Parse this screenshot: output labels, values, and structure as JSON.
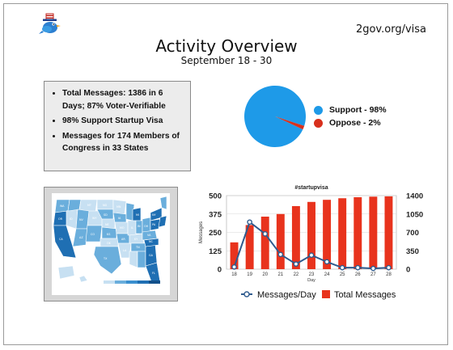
{
  "header": {
    "site_url": "2gov.org/visa",
    "title": "Activity Overview",
    "subtitle": "September 18 - 30"
  },
  "summary": {
    "bullets": [
      "Total Messages: 1386 in 6 Days; 87% Voter-Verifiable",
      "98% Support Startup Visa",
      "Messages for 174 Members of Congress in 33 States"
    ]
  },
  "colors": {
    "support": "#1e9ae8",
    "oppose": "#d8301c",
    "bars": "#e8331d",
    "line": "#2f5b8e",
    "map_dark": "#1f6fb3",
    "map_mid": "#6aaedc",
    "map_light": "#c7e0f2"
  },
  "chart_data": [
    {
      "type": "pie",
      "categories": [
        "Support - 98%",
        "Oppose -  2%"
      ],
      "values": [
        98,
        2
      ]
    },
    {
      "type": "bar",
      "title": "#startupvisa",
      "xlabel": "Day",
      "ylabel": "Messages",
      "categories": [
        "18",
        "19",
        "20",
        "21",
        "22",
        "23",
        "24",
        "25",
        "26",
        "27",
        "28"
      ],
      "series": [
        {
          "name": "Messages/Day",
          "kind": "line",
          "axis": "left",
          "values": [
            15,
            320,
            240,
            100,
            35,
            95,
            50,
            10,
            10,
            5,
            10
          ]
        },
        {
          "name": "Total Messages",
          "kind": "bar",
          "axis": "right",
          "values": [
            510,
            840,
            1000,
            1050,
            1200,
            1280,
            1320,
            1350,
            1370,
            1380,
            1386
          ]
        }
      ],
      "ylim_left": [
        0,
        500
      ],
      "ylim_right": [
        0,
        1400
      ],
      "yticks_left": [
        "0",
        "125",
        "250",
        "375",
        "500"
      ],
      "yticks_right": [
        "0",
        "350",
        "700",
        "1050",
        "1400"
      ],
      "legend_position": "bottom"
    }
  ]
}
